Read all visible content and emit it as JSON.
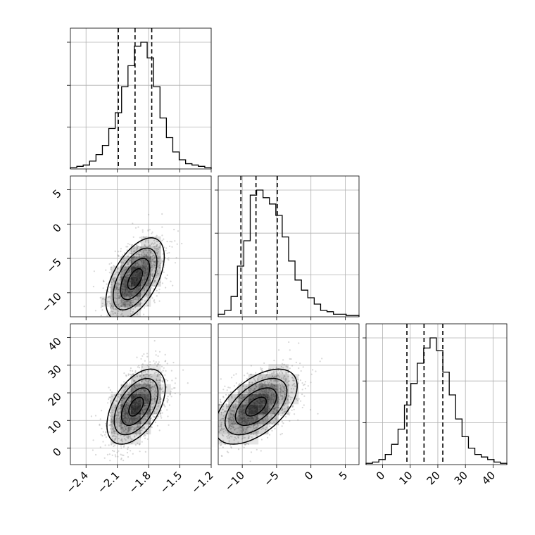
{
  "chart_data": {
    "type": "corner",
    "title": "",
    "parameters": [
      {
        "label": "",
        "range": [
          -2.55,
          -1.2
        ],
        "ticks": [
          -2.4,
          -2.1,
          -1.8,
          -1.5,
          -1.2
        ],
        "tick_labels": [
          "−2.4",
          "−2.1",
          "−1.8",
          "−1.5",
          "−1.2"
        ],
        "quantiles": [
          -2.09,
          -1.93,
          -1.77
        ]
      },
      {
        "label": "",
        "range": [
          -13.5,
          7.0
        ],
        "ticks": [
          -10,
          -5,
          0,
          5
        ],
        "tick_labels": [
          "−10",
          "−5",
          "0",
          "5"
        ],
        "quantiles": [
          -10.2,
          -8.0,
          -4.9
        ]
      },
      {
        "label": "",
        "range": [
          -6.0,
          45.0
        ],
        "ticks": [
          0,
          10,
          20,
          30,
          40
        ],
        "tick_labels": [
          "0",
          "10",
          "20",
          "30",
          "40"
        ],
        "quantiles": [
          8.8,
          15.0,
          21.8
        ]
      }
    ],
    "histograms": [
      {
        "parameter": 0,
        "bin_edges_range": [
          -2.55,
          -1.2
        ],
        "counts": [
          1,
          2,
          3,
          6,
          11,
          18,
          31,
          43,
          63,
          79,
          94,
          97,
          85,
          63,
          39,
          24,
          13,
          7,
          4,
          3,
          2,
          1
        ]
      },
      {
        "parameter": 1,
        "bin_edges_range": [
          -13.5,
          7.0
        ],
        "counts": [
          2,
          5,
          16,
          40,
          60,
          96,
          100,
          94,
          89,
          80,
          63,
          44,
          29,
          21,
          15,
          10,
          5,
          4,
          2,
          2,
          1,
          1
        ]
      },
      {
        "parameter": 2,
        "bin_edges_range": [
          -6.0,
          45.0
        ],
        "counts": [
          1,
          2,
          4,
          8,
          16,
          28,
          47,
          64,
          80,
          92,
          100,
          90,
          73,
          55,
          36,
          22,
          13,
          8,
          6,
          4,
          2,
          1
        ]
      }
    ],
    "pairs": [
      {
        "x_param": 0,
        "y_param": 1,
        "mean": [
          -1.93,
          -8.0
        ],
        "std": [
          0.14,
          3.0
        ],
        "correlation": 0.55
      },
      {
        "x_param": 0,
        "y_param": 2,
        "mean": [
          -1.92,
          15.0
        ],
        "std": [
          0.14,
          6.8
        ],
        "correlation": 0.5
      },
      {
        "x_param": 1,
        "y_param": 2,
        "mean": [
          -8.0,
          15.0
        ],
        "std": [
          3.0,
          6.8
        ],
        "correlation": 0.55
      }
    ],
    "contour_levels_sigma": [
      0.5,
      1.0,
      1.5,
      2.0
    ],
    "grid": true,
    "colors": {
      "line": "#000000",
      "scatter": "#8c8c8c",
      "grid": "#b0b0b0",
      "density": "#000000"
    }
  }
}
